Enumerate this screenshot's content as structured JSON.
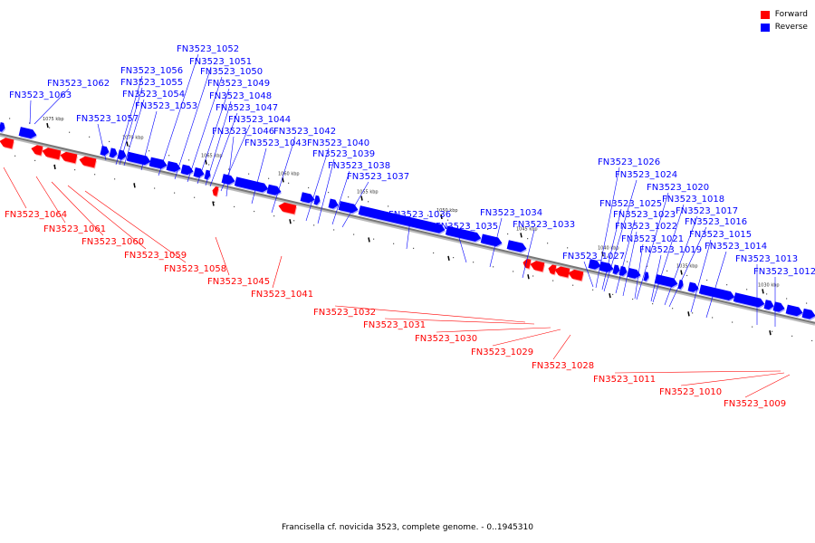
{
  "colors": {
    "forward": "#ff0000",
    "reverse": "#0000ff",
    "backbone": "#777777"
  },
  "legend": [
    {
      "label": "Forward",
      "color": "#ff0000"
    },
    {
      "label": "Reverse",
      "color": "#0000ff"
    }
  ],
  "caption": "Francisella cf. novicida 3523, complete genome. - 0..1945310",
  "ticks": [
    "1075 kbp",
    "1070 kbp",
    "1065 kbp",
    "1060 kbp",
    "1055 kbp",
    "1050 kbp",
    "1045 kbp",
    "1040 kbp",
    "1035 kbp",
    "1030 kbp"
  ],
  "reverse_genes": [
    "FN3523_1063",
    "FN3523_1062",
    "FN3523_1057",
    "FN3523_1056",
    "FN3523_1055",
    "FN3523_1054",
    "FN3523_1053",
    "FN3523_1052",
    "FN3523_1051",
    "FN3523_1050",
    "FN3523_1049",
    "FN3523_1048",
    "FN3523_1047",
    "FN3523_1046",
    "FN3523_1044",
    "FN3523_1043",
    "FN3523_1042",
    "FN3523_1040",
    "FN3523_1039",
    "FN3523_1038",
    "FN3523_1037",
    "FN3523_1036",
    "FN3523_1035",
    "FN3523_1034",
    "FN3523_1033",
    "FN3523_1027",
    "FN3523_1026",
    "FN3523_1025",
    "FN3523_1024",
    "FN3523_1023",
    "FN3523_1022",
    "FN3523_1021",
    "FN3523_1020",
    "FN3523_1019",
    "FN3523_1018",
    "FN3523_1017",
    "FN3523_1016",
    "FN3523_1015",
    "FN3523_1014",
    "FN3523_1013",
    "FN3523_1012"
  ],
  "forward_genes": [
    "FN3523_1064",
    "FN3523_1061",
    "FN3523_1060",
    "FN3523_1059",
    "FN3523_1058",
    "FN3523_1045",
    "FN3523_1041",
    "FN3523_1032",
    "FN3523_1031",
    "FN3523_1030",
    "FN3523_1029",
    "FN3523_1028",
    "FN3523_1011",
    "FN3523_1010",
    "FN3523_1009"
  ]
}
